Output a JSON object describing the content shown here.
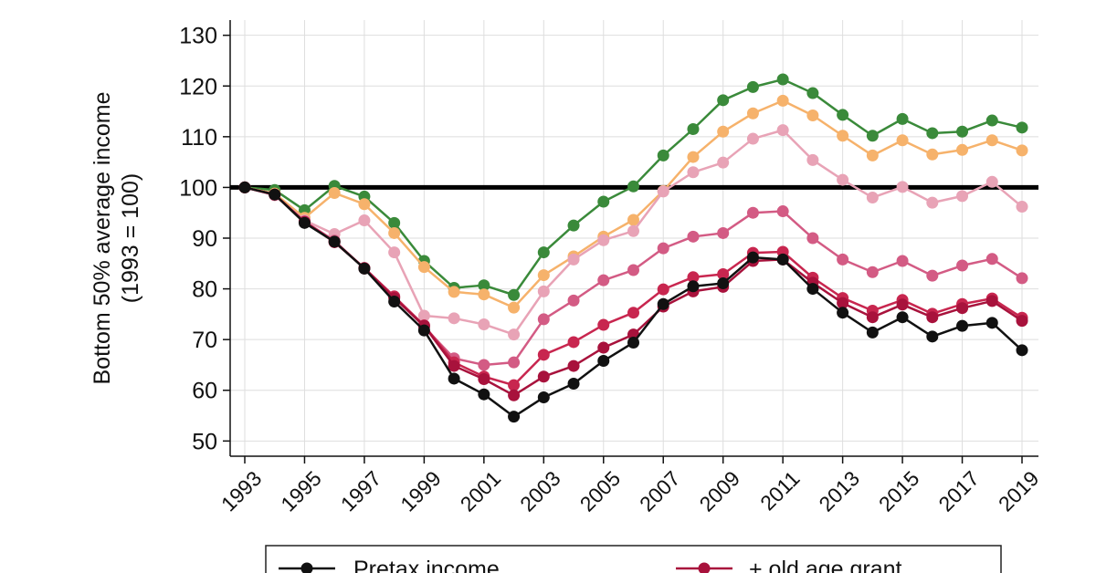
{
  "chart_data": {
    "type": "line",
    "title": "",
    "xlabel": "",
    "ylabel": "Bottom 50% average income",
    "ylabel_sub": "(1993 = 100)",
    "xlim": [
      1993,
      2019
    ],
    "ylim": [
      47,
      133
    ],
    "yticks": [
      50,
      60,
      70,
      80,
      90,
      100,
      110,
      120,
      130
    ],
    "xticks": [
      1993,
      1995,
      1997,
      1999,
      2001,
      2003,
      2005,
      2007,
      2009,
      2011,
      2013,
      2015,
      2017,
      2019
    ],
    "reference_line": 100,
    "grid": true,
    "x": [
      1993,
      1994,
      1995,
      1996,
      1997,
      1998,
      1999,
      2000,
      2001,
      2002,
      2003,
      2004,
      2005,
      2006,
      2007,
      2008,
      2009,
      2010,
      2011,
      2012,
      2013,
      2014,
      2015,
      2016,
      2017,
      2018,
      2019
    ],
    "series": [
      {
        "name": "series-green",
        "color": "#3a8a3a",
        "values": [
          100,
          99.5,
          95.5,
          100.3,
          98.2,
          93,
          85.5,
          80.2,
          80.7,
          78.8,
          87.2,
          92.5,
          97.2,
          100.2,
          106.3,
          111.5,
          117.2,
          119.8,
          121.3,
          118.6,
          114.3,
          110.2,
          113.5,
          110.7,
          111,
          113.2,
          111.8
        ]
      },
      {
        "name": "series-orange",
        "color": "#f6b26b",
        "values": [
          100,
          98.8,
          94,
          98.9,
          96.7,
          91,
          84.3,
          79.4,
          78.9,
          76.3,
          82.7,
          86.4,
          90.3,
          93.6,
          99.3,
          106,
          111,
          114.6,
          117.1,
          114.2,
          110.2,
          106.3,
          109.3,
          106.5,
          107.4,
          109.3,
          107.3
        ]
      },
      {
        "name": "series-light-pink",
        "color": "#e8a3b6",
        "values": [
          100,
          98.5,
          93.5,
          90.8,
          93.5,
          87.2,
          74.7,
          74.2,
          73,
          71,
          79.5,
          85.8,
          89.6,
          91.4,
          99.2,
          103,
          104.9,
          109.6,
          111.3,
          105.4,
          101.5,
          98,
          100.1,
          97,
          98.3,
          101.1,
          96.2
        ]
      },
      {
        "name": "series-pink",
        "color": "#d35b84",
        "values": [
          100,
          98.5,
          93.3,
          89.5,
          84,
          78.5,
          72.5,
          66.3,
          65,
          65.5,
          74,
          77.7,
          81.7,
          83.7,
          88,
          90.3,
          91,
          95,
          95.3,
          90,
          85.8,
          83.3,
          85.5,
          82.6,
          84.6,
          85.9,
          82.1
        ]
      },
      {
        "name": "series-crimson-light",
        "color": "#c8264f",
        "values": [
          100,
          98.6,
          93.2,
          89.3,
          84.1,
          78.5,
          72.8,
          65.5,
          62.7,
          61,
          67,
          69.5,
          72.9,
          75.3,
          79.9,
          82.3,
          82.9,
          87.1,
          87.3,
          82.2,
          78.2,
          75.7,
          77.8,
          75.1,
          77,
          78.1,
          74.3
        ]
      },
      {
        "name": "series-crimson",
        "color": "#a8123c",
        "values": [
          100,
          98.6,
          93.2,
          89.2,
          84.1,
          78.2,
          72.7,
          64.8,
          62.2,
          59,
          62.7,
          64.8,
          68.4,
          71,
          76.5,
          79.5,
          80.4,
          85.5,
          85.8,
          81.2,
          77.2,
          74.4,
          76.9,
          74.4,
          76.2,
          77.6,
          73.7
        ]
      },
      {
        "name": "Pretax income",
        "color": "#111111",
        "values": [
          100,
          98.6,
          93,
          89.3,
          84,
          77.5,
          71.8,
          62.3,
          59.2,
          54.8,
          58.6,
          61.3,
          65.8,
          69.4,
          77,
          80.5,
          81.1,
          86.2,
          85.8,
          80,
          75.3,
          71.4,
          74.4,
          70.6,
          72.7,
          73.3,
          67.9
        ]
      }
    ],
    "legend": [
      {
        "label": "Pretax income",
        "color": "#111111"
      },
      {
        "label": "+ old age grant",
        "color": "#a8123c"
      }
    ]
  }
}
